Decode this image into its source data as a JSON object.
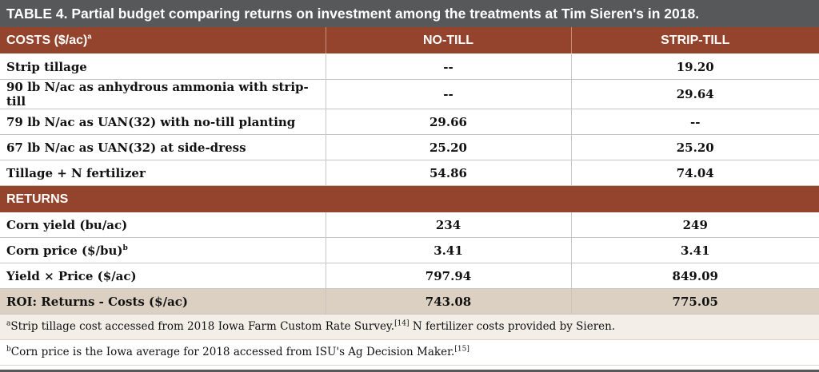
{
  "title": {
    "label": "TABLE 4.",
    "text": "Partial budget comparing returns on investment among the treatments at Tim Sieren's in 2018."
  },
  "header": {
    "col1": "COSTS ($/ac)",
    "col1_sup": "a",
    "col2": "NO-TILL",
    "col3": "STRIP-TILL"
  },
  "costs": [
    {
      "label": "Strip tillage",
      "label_sup": "",
      "no_till": "--",
      "strip_till": "19.20"
    },
    {
      "label": "90 lb N/ac as anhydrous ammonia with strip-till",
      "label_sup": "",
      "no_till": "--",
      "strip_till": "29.64"
    },
    {
      "label": "79 lb N/ac as UAN(32) with no-till planting",
      "label_sup": "",
      "no_till": "29.66",
      "strip_till": "--"
    },
    {
      "label": "67 lb N/ac as UAN(32) at side-dress",
      "label_sup": "",
      "no_till": "25.20",
      "strip_till": "25.20"
    },
    {
      "label": "Tillage + N fertilizer",
      "label_sup": "",
      "no_till": "54.86",
      "strip_till": "74.04"
    }
  ],
  "returns_header": "RETURNS",
  "returns": [
    {
      "label": "Corn yield (bu/ac)",
      "label_sup": "",
      "no_till": "234",
      "strip_till": "249"
    },
    {
      "label": "Corn price ($/bu)",
      "label_sup": "b",
      "no_till": "3.41",
      "strip_till": "3.41"
    },
    {
      "label": "Yield × Price ($/ac)",
      "label_sup": "",
      "no_till": "797.94",
      "strip_till": "849.09"
    }
  ],
  "roi": {
    "label": "ROI: Returns - Costs ($/ac)",
    "no_till": "743.08",
    "strip_till": "775.05"
  },
  "footnotes": [
    {
      "mark": "a",
      "text": "Strip tillage cost accessed from 2018 Iowa Farm Custom Rate Survey.",
      "ref": "[14]",
      "text2": " N fertilizer costs provided by Sieren."
    },
    {
      "mark": "b",
      "text": "Corn price is the Iowa average for 2018 accessed from ISU's Ag Decision Maker.",
      "ref": "[15]",
      "text2": ""
    }
  ],
  "colors": {
    "title_bg": "#57585a",
    "header_bg": "#94432c",
    "roi_bg": "#dcd0c2"
  }
}
